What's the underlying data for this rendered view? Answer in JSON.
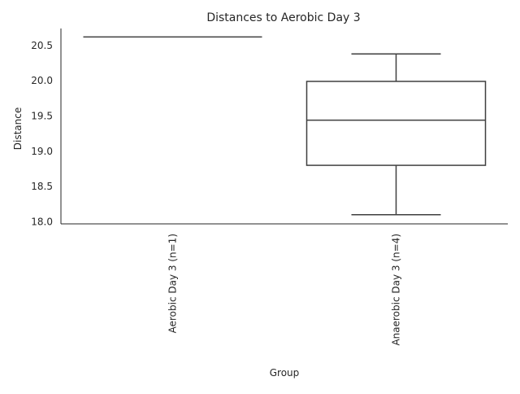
{
  "chart_data": {
    "type": "box",
    "title": "Distances to Aerobic Day 3",
    "xlabel": "Group",
    "ylabel": "Distance",
    "categories": [
      "Aerobic Day 3 (n=1)",
      "Anaerobic Day 3 (n=4)"
    ],
    "boxes": [
      {
        "category": "Aerobic Day 3 (n=1)",
        "min": 20.62,
        "q1": 20.62,
        "median": 20.62,
        "q3": 20.62,
        "max": 20.62
      },
      {
        "category": "Anaerobic Day 3 (n=4)",
        "min": 18.1,
        "q1": 18.8,
        "median": 19.44,
        "q3": 19.99,
        "max": 20.38
      }
    ],
    "yticks": [
      "18.0",
      "18.5",
      "19.0",
      "19.5",
      "20.0",
      "20.5"
    ],
    "ylim": [
      17.97,
      20.74
    ],
    "grid": false,
    "colors": {
      "box_edge": "#3f3f3f",
      "box_fill": "#ffffff",
      "axis": "#262626",
      "text": "#262626"
    }
  }
}
